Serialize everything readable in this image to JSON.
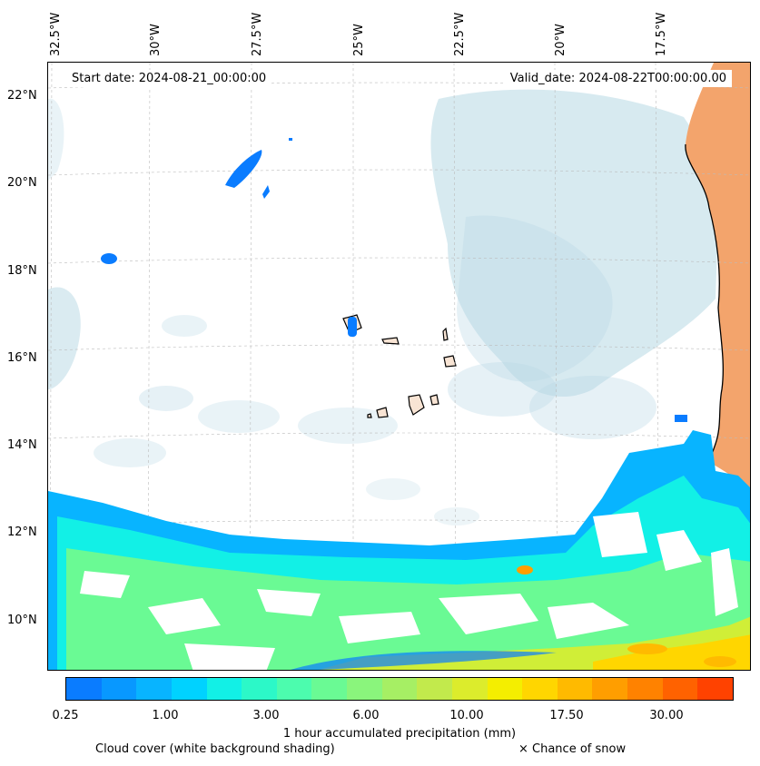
{
  "map": {
    "lon_labels": [
      "32.5°W",
      "30°W",
      "27.5°W",
      "25°W",
      "22.5°W",
      "20°W",
      "17.5°W"
    ],
    "lat_labels": [
      "22°N",
      "20°N",
      "18°N",
      "16°N",
      "14°N",
      "12°N",
      "10°N"
    ],
    "start_date": "Start date: 2024-08-21_00:00:00",
    "valid_date": "Valid_date: 2024-08-22T00:00:00.00"
  },
  "colorbar": {
    "colors": [
      "#0a7cff",
      "#0898ff",
      "#08b4ff",
      "#00d2ff",
      "#12f0e6",
      "#2cf8c8",
      "#4cfcae",
      "#6afa94",
      "#8af57c",
      "#a6ef64",
      "#c2ea4c",
      "#dcec2c",
      "#f4ee00",
      "#ffd600",
      "#ffba00",
      "#ff9e00",
      "#ff8200",
      "#ff6200",
      "#ff4200"
    ],
    "ticks": [
      "0.25",
      "1.00",
      "3.00",
      "6.00",
      "10.00",
      "17.50",
      "30.00"
    ],
    "label": "1 hour accumulated precipitation (mm)"
  },
  "legend": {
    "cloud_cover": "Cloud cover (white background shading)",
    "snow": "× Chance of snow"
  },
  "colors": {
    "cloud": "#b6d8e4",
    "land": "#f3a46c",
    "island_fill": "#f8e4d4"
  }
}
